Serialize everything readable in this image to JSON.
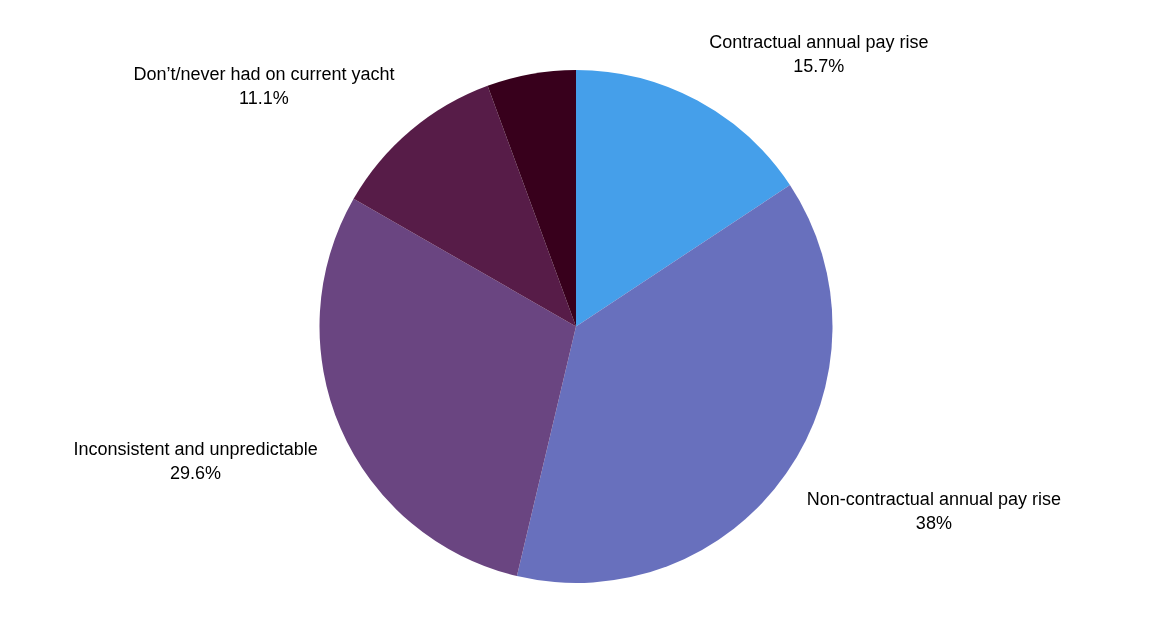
{
  "chart_data": {
    "type": "pie",
    "categories": [
      "Contractual annual pay rise",
      "Non-contractual annual pay rise",
      "Inconsistent and unpredictable",
      "Don’t/never had on current yacht",
      null
    ],
    "values": [
      15.7,
      38,
      29.6,
      11.1,
      5.6
    ],
    "value_labels": [
      "15.7%",
      "38%",
      "29.6%",
      "11.1%",
      null
    ],
    "colors": [
      "#459fea",
      "#6870bd",
      "#6a4581",
      "#571c48",
      "#38001c"
    ],
    "legend": false
  }
}
